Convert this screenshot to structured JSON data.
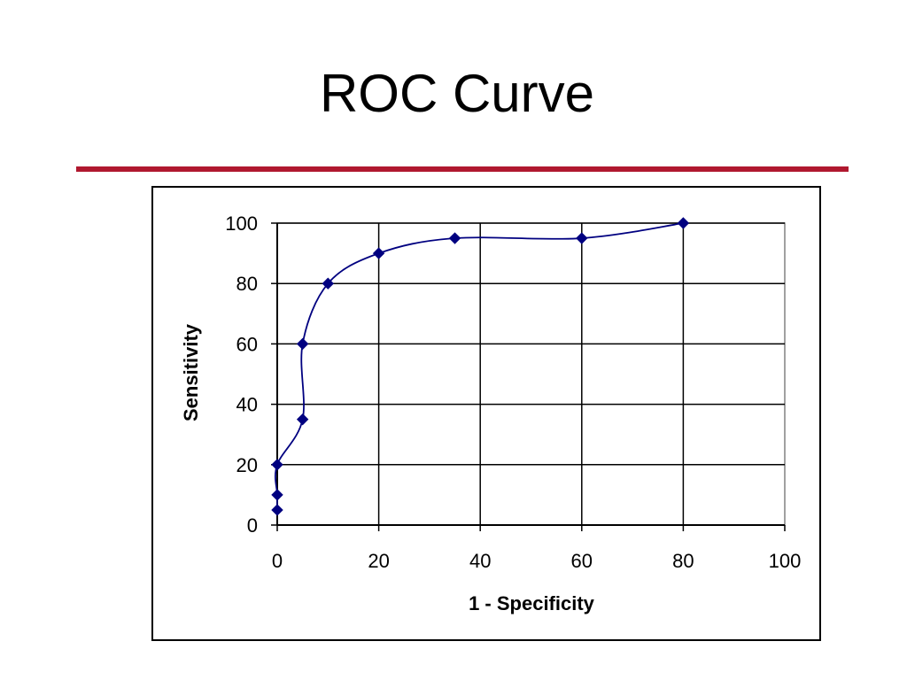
{
  "slide": {
    "title": "ROC Curve",
    "rule_color": "#b0182f"
  },
  "chart_data": {
    "type": "line",
    "xlabel": "1 - Specificity",
    "ylabel": "Sensitivity",
    "xlim": [
      0,
      100
    ],
    "ylim": [
      0,
      100
    ],
    "xticks": [
      0,
      20,
      40,
      60,
      80,
      100
    ],
    "yticks": [
      0,
      20,
      40,
      60,
      80,
      100
    ],
    "grid": true,
    "legend": "none",
    "series": [
      {
        "color": "#000080",
        "marker": "diamond",
        "smooth": true,
        "x": [
          0,
          0,
          0,
          5,
          5,
          10,
          20,
          35,
          60,
          80
        ],
        "y": [
          5,
          10,
          20,
          35,
          60,
          80,
          90,
          95,
          95,
          100
        ]
      }
    ]
  }
}
